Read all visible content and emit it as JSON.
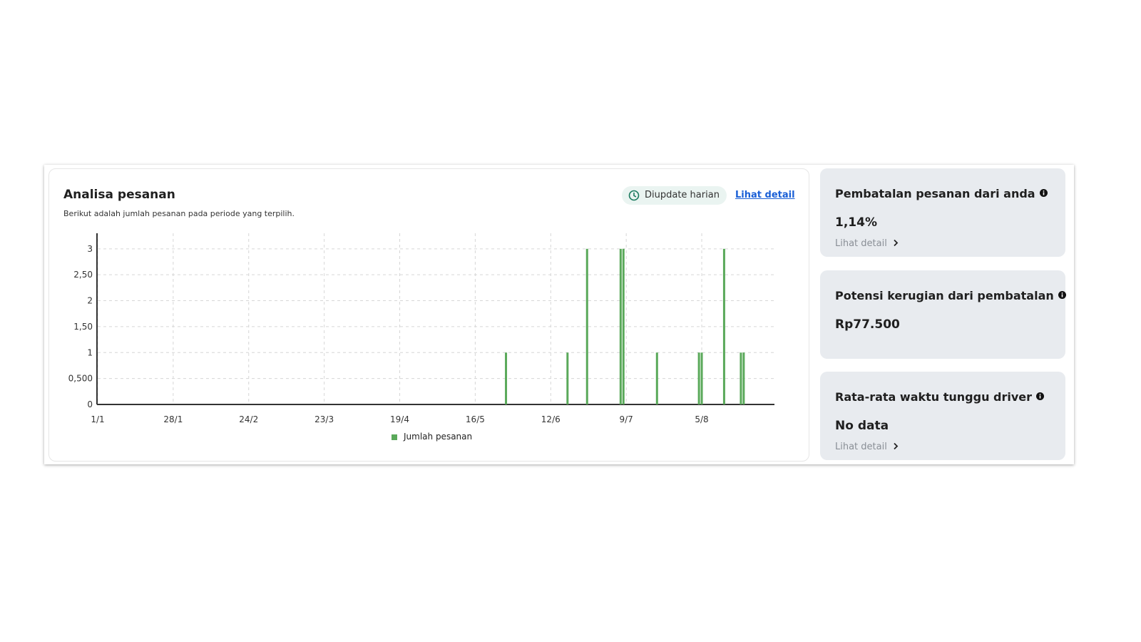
{
  "header": {
    "title": "Analisa pesanan",
    "subtitle": "Berikut adalah jumlah pesanan pada periode yang terpilih.",
    "badge": "Diupdate harian",
    "link": "Lihat detail"
  },
  "chart_data": {
    "type": "bar",
    "x": [
      "27/5",
      "18/6",
      "25/6",
      "7/7",
      "8/7",
      "20/7",
      "4/8",
      "5/8",
      "13/8",
      "19/8",
      "20/8"
    ],
    "series": [
      {
        "name": "Jumlah pesanan",
        "color": "#5aa95a",
        "values": [
          1,
          1,
          3,
          3,
          3,
          1,
          1,
          1,
          3,
          1,
          1
        ]
      }
    ],
    "xlim": [
      "1/1",
      "31/8"
    ],
    "xticks": [
      "1/1",
      "28/1",
      "24/2",
      "23/3",
      "19/4",
      "16/5",
      "12/6",
      "9/7",
      "5/8"
    ],
    "ylim": [
      0,
      3.3
    ],
    "yticks": [
      0,
      {
        "value": 0.5,
        "label": "0,500"
      },
      1,
      {
        "value": 1.5,
        "label": "1,50"
      },
      2,
      {
        "value": 2.5,
        "label": "2,50"
      },
      3
    ],
    "grid": true
  },
  "cards": [
    {
      "title": "Pembatalan pesanan dari anda",
      "value": "1,14%",
      "link": "Lihat detail"
    },
    {
      "title": "Potensi kerugian dari pembatalan",
      "value": "Rp77.500"
    },
    {
      "title": "Rata-rata waktu tunggu driver",
      "value": "No data",
      "link": "Lihat detail"
    }
  ]
}
